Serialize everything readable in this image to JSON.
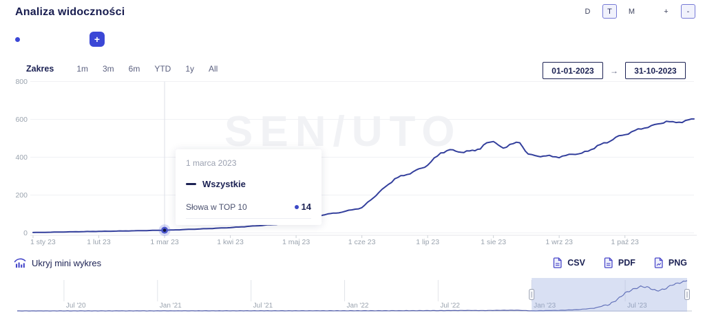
{
  "header": {
    "title": "Analiza widoczności",
    "granularity_options": [
      "D",
      "T",
      "M"
    ],
    "granularity_selected": "T",
    "zoom_plus": "+",
    "zoom_minus": "-"
  },
  "legend": {
    "add_button_label": "+"
  },
  "range": {
    "label": "Zakres",
    "options": [
      "1m",
      "3m",
      "6m",
      "YTD",
      "1y",
      "All"
    ],
    "date_from": "01-01-2023",
    "date_arrow": "→",
    "date_to": "31-10-2023"
  },
  "tooltip": {
    "date": "1 marca 2023",
    "series": "Wszystkie",
    "metric_label": "Słowa w TOP 10",
    "metric_value": "14"
  },
  "toolbar": {
    "toggle_mini_label": "Ukryj mini wykres",
    "exports": [
      {
        "label": "CSV"
      },
      {
        "label": "PDF"
      },
      {
        "label": "PNG"
      }
    ]
  },
  "chart_data": {
    "type": "line",
    "title": "Analiza widoczności",
    "watermark": "SEN/UTO",
    "ylim": [
      0,
      800
    ],
    "y_ticks": [
      0,
      200,
      400,
      600,
      800
    ],
    "x_unit": "months since 2023-01-01",
    "x_ticks": [
      {
        "label": "1 sty 23",
        "m": 0
      },
      {
        "label": "1 lut 23",
        "m": 1
      },
      {
        "label": "1 mar 23",
        "m": 2
      },
      {
        "label": "1 kwi 23",
        "m": 3
      },
      {
        "label": "1 maj 23",
        "m": 4
      },
      {
        "label": "1 cze 23",
        "m": 5
      },
      {
        "label": "1 lip 23",
        "m": 6
      },
      {
        "label": "1 sie 23",
        "m": 7
      },
      {
        "label": "1 wrz 23",
        "m": 8
      },
      {
        "label": "1 paź 23",
        "m": 9
      }
    ],
    "series": [
      {
        "name": "Wszystkie",
        "color": "#333f9c",
        "points": [
          [
            0,
            2
          ],
          [
            0.32,
            4
          ],
          [
            0.65,
            6
          ],
          [
            1,
            8
          ],
          [
            1.5,
            11
          ],
          [
            2,
            14
          ],
          [
            2.5,
            20
          ],
          [
            3,
            28
          ],
          [
            3.34,
            36
          ],
          [
            3.7,
            45
          ],
          [
            4,
            55
          ],
          [
            4.23,
            75
          ],
          [
            4.44,
            98
          ],
          [
            4.65,
            107
          ],
          [
            4.8,
            118
          ],
          [
            5,
            133
          ],
          [
            5.26,
            213
          ],
          [
            5.5,
            286
          ],
          [
            5.78,
            322
          ],
          [
            6,
            358
          ],
          [
            6.2,
            424
          ],
          [
            6.34,
            438
          ],
          [
            6.47,
            431
          ],
          [
            6.55,
            424
          ],
          [
            6.68,
            438
          ],
          [
            6.8,
            442
          ],
          [
            6.9,
            478
          ],
          [
            7,
            486
          ],
          [
            7.07,
            462
          ],
          [
            7.15,
            449
          ],
          [
            7.25,
            467
          ],
          [
            7.4,
            478
          ],
          [
            7.53,
            415
          ],
          [
            7.63,
            407
          ],
          [
            7.8,
            406
          ],
          [
            8,
            402
          ],
          [
            8.1,
            407
          ],
          [
            8.2,
            417
          ],
          [
            8.34,
            420
          ],
          [
            8.44,
            432
          ],
          [
            8.58,
            460
          ],
          [
            8.73,
            478
          ],
          [
            8.86,
            504
          ],
          [
            9,
            520
          ],
          [
            9.15,
            540
          ],
          [
            9.3,
            556
          ],
          [
            9.5,
            574
          ],
          [
            9.63,
            590
          ],
          [
            9.73,
            583
          ],
          [
            9.87,
            588
          ],
          [
            9.97,
            596
          ],
          [
            10.05,
            602
          ]
        ]
      }
    ],
    "highlight": {
      "label": "1 marca 2023",
      "m": 2,
      "value": 14,
      "metric": "Słowa w TOP 10"
    },
    "navigator": {
      "x_unit": "months since 2020-04-01",
      "x_ticks": [
        {
          "label": "Jul '20",
          "m": 3
        },
        {
          "label": "Jan '21",
          "m": 9
        },
        {
          "label": "Jul '21",
          "m": 15
        },
        {
          "label": "Jan '22",
          "m": 21
        },
        {
          "label": "Jul '22",
          "m": 27
        },
        {
          "label": "Jan '23",
          "m": 33
        },
        {
          "label": "Jul '23",
          "m": 39
        }
      ],
      "points": [
        [
          0,
          1
        ],
        [
          6,
          2
        ],
        [
          12,
          3
        ],
        [
          18,
          4
        ],
        [
          24,
          5
        ],
        [
          27,
          7
        ],
        [
          29,
          10
        ],
        [
          30,
          8
        ],
        [
          31,
          13
        ],
        [
          32,
          15
        ],
        [
          33,
          3
        ],
        [
          34,
          8
        ],
        [
          35,
          14
        ],
        [
          36,
          28
        ],
        [
          37,
          55
        ],
        [
          38,
          133
        ],
        [
          38.5,
          230
        ],
        [
          39,
          358
        ],
        [
          39.5,
          430
        ],
        [
          40,
          486
        ],
        [
          40.4,
          476
        ],
        [
          41,
          402
        ],
        [
          41.5,
          432
        ],
        [
          42,
          520
        ],
        [
          42.5,
          560
        ],
        [
          42.97,
          602
        ]
      ],
      "selection": {
        "from_m": 33,
        "to_m": 42.97,
        "from_date": "01-01-2023",
        "to_date": "31-10-2023"
      }
    }
  }
}
